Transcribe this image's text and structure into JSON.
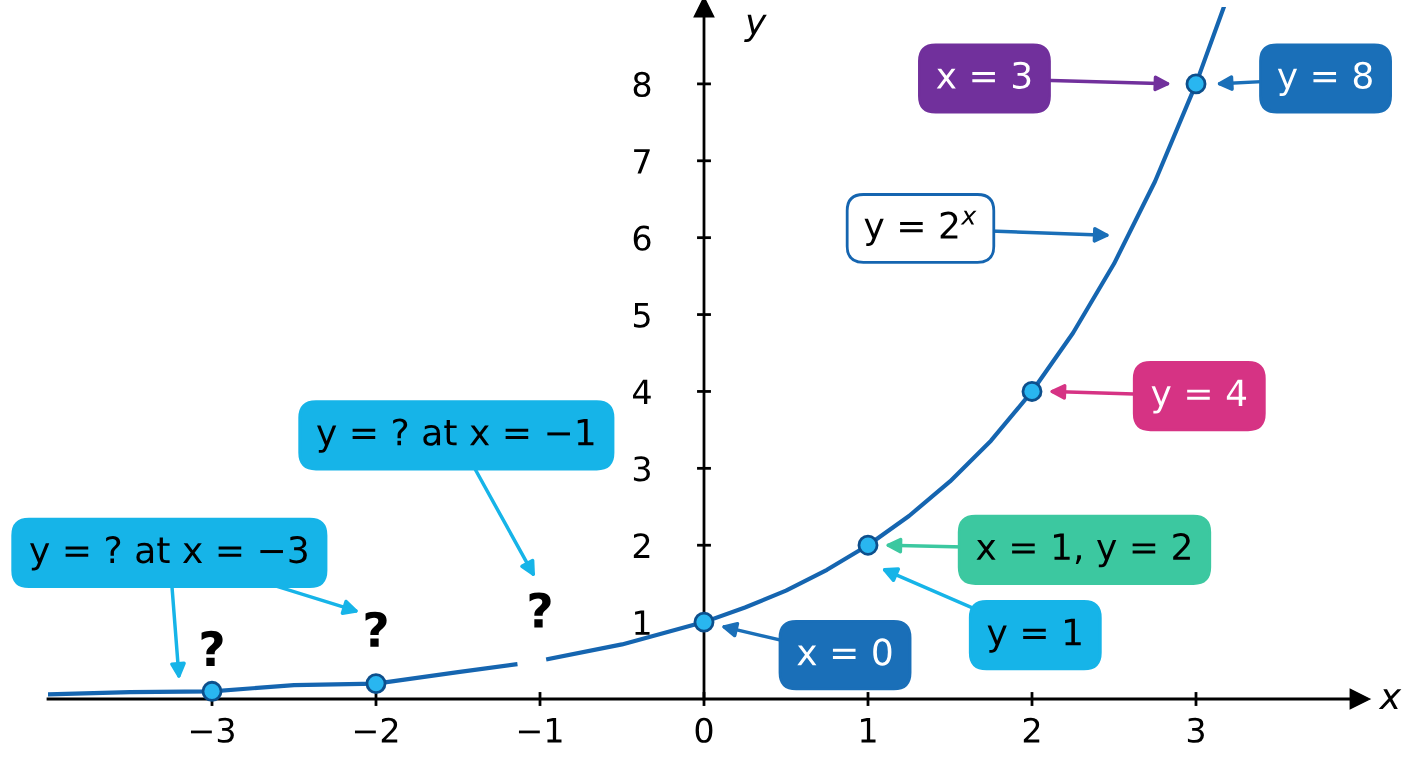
{
  "chart_data": {
    "type": "line",
    "xlabel": "x",
    "ylabel": "y",
    "xlim": [
      -4,
      4
    ],
    "ylim": [
      0,
      9
    ],
    "xticks": [
      {
        "value": -3,
        "label": "−3"
      },
      {
        "value": -2,
        "label": "−2"
      },
      {
        "value": -1,
        "label": "−1"
      },
      0,
      1,
      2,
      3
    ],
    "yticks": [
      1,
      2,
      3,
      4,
      5,
      6,
      7,
      8
    ],
    "grid": false,
    "series": [
      {
        "type": "line",
        "color": "#1565b0",
        "marker": "none",
        "line_style": "solid",
        "x": [
          -4,
          -3.5,
          -3,
          -2.5,
          -2,
          -1.5,
          -1.15,
          -1.05,
          -0.95,
          -0.5,
          0,
          0.25,
          0.5,
          0.75,
          1,
          1.25,
          1.5,
          1.75,
          2,
          2.25,
          2.5,
          2.75,
          3,
          3.17
        ],
        "values": [
          0.06,
          0.09,
          0.1,
          0.18,
          0.2,
          0.35,
          0.45,
          null,
          0.52,
          0.71,
          1,
          1.19,
          1.41,
          1.68,
          2,
          2.38,
          2.83,
          3.36,
          4,
          4.76,
          5.66,
          6.73,
          8,
          9.0
        ]
      },
      {
        "type": "scatter",
        "color": "#29b6f0",
        "marker": "circle",
        "x": [
          -3,
          -2,
          0,
          1,
          2,
          3
        ],
        "values": [
          0.1,
          0.2,
          1,
          2,
          4,
          8
        ]
      }
    ],
    "annotations": [
      "x = 3",
      "y = 8",
      "y = 2$^{x}$",
      "y = 4",
      "x = 1, y = 2",
      "y = 1",
      "x = 0",
      "y = ? at x = −1",
      "y = ? at x = −3",
      "?",
      "?",
      "?"
    ]
  }
}
